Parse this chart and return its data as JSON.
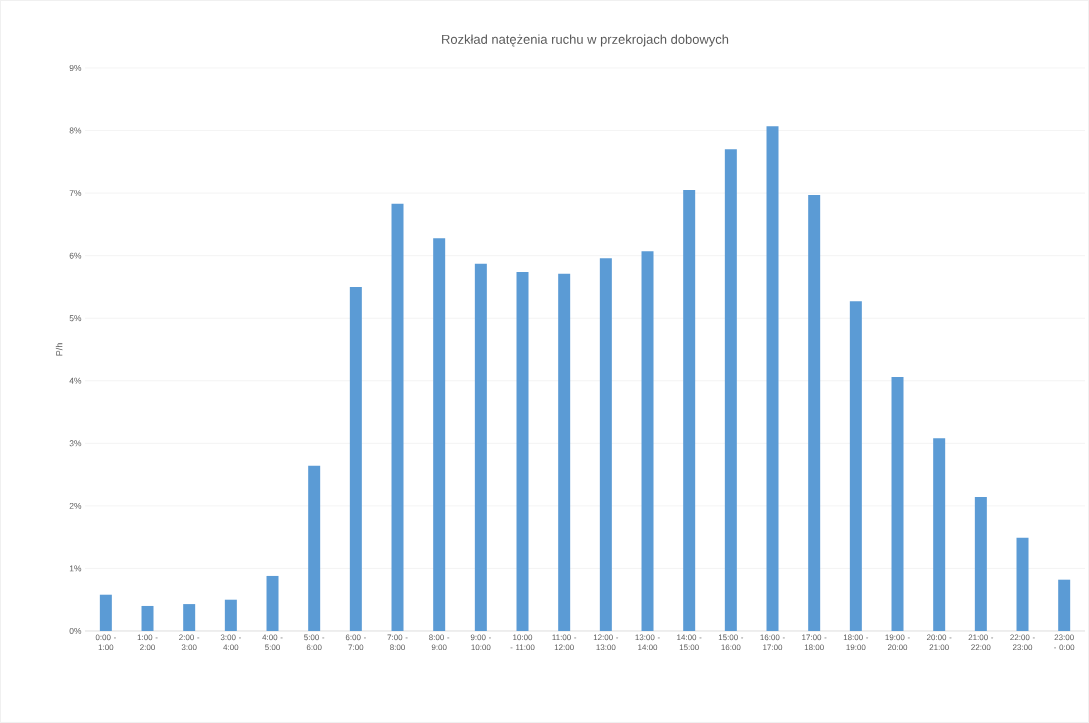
{
  "chart_data": {
    "type": "bar",
    "title": "Rozkład natężenia ruchu w przekrojach dobowych",
    "ylabel": "P/h",
    "categories": [
      "0:00 - 1:00",
      "1:00 - 2:00",
      "2:00 - 3:00",
      "3:00 - 4:00",
      "4:00 - 5:00",
      "5:00 - 6:00",
      "6:00 - 7:00",
      "7:00 - 8:00",
      "8:00 - 9:00",
      "9:00 - 10:00",
      "10:00 - 11:00",
      "11:00 - 12:00",
      "12:00 - 13:00",
      "13:00 - 14:00",
      "14:00 - 15:00",
      "15:00 - 16:00",
      "16:00 - 17:00",
      "17:00 - 18:00",
      "18:00 - 19:00",
      "19:00 - 20:00",
      "20:00 - 21:00",
      "21:00 - 22:00",
      "22:00 - 23:00",
      "23:00 - 0:00"
    ],
    "values": [
      0.58,
      0.4,
      0.43,
      0.5,
      0.88,
      2.64,
      5.5,
      6.83,
      6.28,
      5.87,
      5.74,
      5.71,
      5.96,
      6.07,
      7.05,
      7.7,
      8.07,
      6.97,
      5.27,
      4.06,
      3.08,
      2.14,
      1.49,
      0.82
    ],
    "color": "#5b9bd5",
    "ylim": [
      0,
      9
    ],
    "yticks": [
      {
        "value": 0,
        "label": "0%"
      },
      {
        "value": 1,
        "label": "1%"
      },
      {
        "value": 2,
        "label": "2%"
      },
      {
        "value": 3,
        "label": "3%"
      },
      {
        "value": 4,
        "label": "4%"
      },
      {
        "value": 5,
        "label": "5%"
      },
      {
        "value": 6,
        "label": "6%"
      },
      {
        "value": 7,
        "label": "7%"
      },
      {
        "value": 8,
        "label": "8%"
      },
      {
        "value": 9,
        "label": "9%"
      }
    ],
    "grid": "y"
  }
}
